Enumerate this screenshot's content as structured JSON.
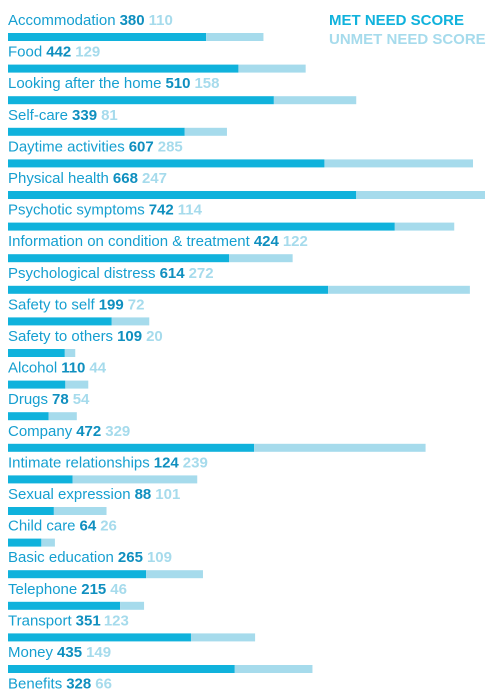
{
  "chart_data": {
    "type": "bar",
    "orientation": "horizontal",
    "stacked": true,
    "categories": [
      "Accommodation",
      "Food",
      "Looking after the home",
      "Self-care",
      "Daytime activities",
      "Physical health",
      "Psychotic symptoms",
      "Information on condition & treatment",
      "Psychological distress",
      "Safety to self",
      "Safety to others",
      "Alcohol",
      "Drugs",
      "Company",
      "Intimate relationships",
      "Sexual expression",
      "Child care",
      "Basic education",
      "Telephone",
      "Transport",
      "Money",
      "Benefits"
    ],
    "series": [
      {
        "name": "MET NEED SCORE",
        "color": "#10b2dc",
        "values": [
          380,
          442,
          510,
          339,
          607,
          668,
          742,
          424,
          614,
          199,
          109,
          110,
          78,
          472,
          124,
          88,
          64,
          265,
          215,
          351,
          435,
          328
        ]
      },
      {
        "name": "UNMET NEED SCORE",
        "color": "#a6dbec",
        "values": [
          110,
          129,
          158,
          81,
          285,
          247,
          114,
          122,
          272,
          72,
          20,
          44,
          54,
          329,
          239,
          101,
          26,
          109,
          46,
          123,
          149,
          66
        ]
      }
    ]
  }
}
